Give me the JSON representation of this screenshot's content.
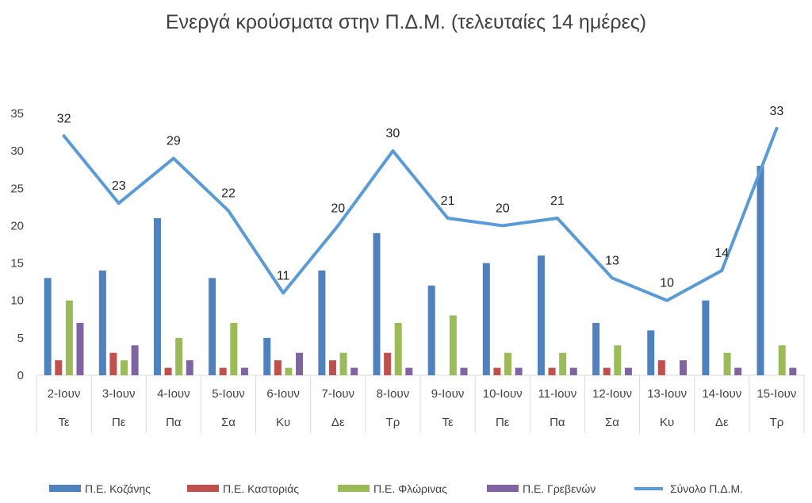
{
  "chart_data": {
    "type": "bar",
    "title": "Ενεργά κρούσματα στην Π.Δ.Μ. (τελευταίες 14 ημέρες)",
    "xlabel": "",
    "ylabel": "",
    "ylim": [
      0,
      35
    ],
    "yticks": [
      0,
      5,
      10,
      15,
      20,
      25,
      30,
      35
    ],
    "grid": false,
    "legend_position": "bottom",
    "categories": [
      "2-Ιουν",
      "3-Ιουν",
      "4-Ιουν",
      "5-Ιουν",
      "6-Ιουν",
      "7-Ιουν",
      "8-Ιουν",
      "9-Ιουν",
      "10-Ιουν",
      "11-Ιουν",
      "12-Ιουν",
      "13-Ιουν",
      "14-Ιουν",
      "15-Ιουν"
    ],
    "days": [
      "Τε",
      "Πε",
      "Πα",
      "Σα",
      "Κυ",
      "Δε",
      "Τρ",
      "Τε",
      "Πε",
      "Πα",
      "Σα",
      "Κυ",
      "Δε",
      "Τρ"
    ],
    "series": [
      {
        "name": "Π.Ε. Κοζάνης",
        "type": "bar",
        "color": "#4f81bd",
        "values": [
          13,
          14,
          21,
          13,
          5,
          14,
          19,
          12,
          15,
          16,
          7,
          6,
          10,
          28
        ]
      },
      {
        "name": "Π.Ε. Καστοριάς",
        "type": "bar",
        "color": "#c0504d",
        "values": [
          2,
          3,
          1,
          1,
          2,
          2,
          3,
          0,
          1,
          1,
          1,
          2,
          0,
          0
        ]
      },
      {
        "name": "Π.Ε. Φλώρινας",
        "type": "bar",
        "color": "#9bbb59",
        "values": [
          10,
          2,
          5,
          7,
          1,
          3,
          7,
          8,
          3,
          3,
          4,
          0,
          3,
          4
        ]
      },
      {
        "name": "Π.Ε. Γρεβενών",
        "type": "bar",
        "color": "#8064a2",
        "values": [
          7,
          4,
          2,
          1,
          3,
          1,
          1,
          1,
          1,
          1,
          1,
          2,
          1,
          1
        ]
      },
      {
        "name": "Σύνολο Π.Δ.Μ.",
        "type": "line",
        "color": "#5b9bd5",
        "values": [
          32,
          23,
          29,
          22,
          11,
          20,
          30,
          21,
          20,
          21,
          13,
          10,
          14,
          33
        ],
        "data_labels": true
      }
    ]
  }
}
